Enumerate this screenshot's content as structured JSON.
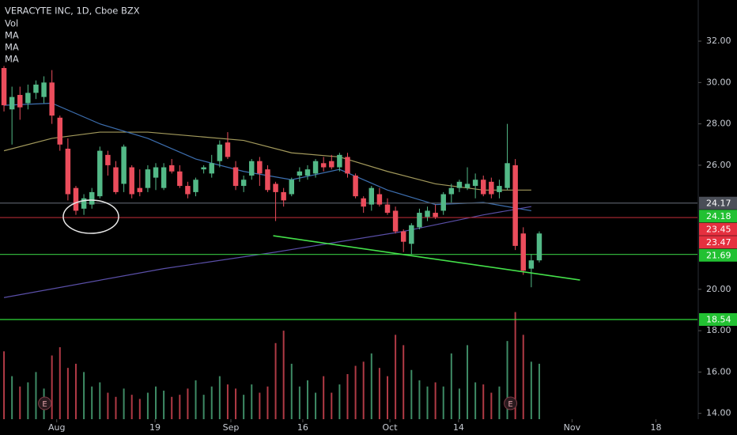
{
  "chart_data": {
    "type": "candlestick",
    "title": "VERACYTE INC, 1D, Cboe BZX",
    "legend": [
      "Vol",
      "MA",
      "MA",
      "MA"
    ],
    "up_color": "#53b987",
    "down_color": "#eb4d5c",
    "categories": [
      null,
      null,
      null,
      null,
      null,
      null,
      null,
      null,
      null,
      null,
      null,
      null,
      null,
      null,
      null,
      null,
      null,
      null,
      null,
      null,
      null,
      null,
      null,
      null,
      null,
      null,
      null,
      null,
      null,
      null,
      null,
      null,
      null,
      null,
      null,
      null,
      null,
      null,
      null,
      null,
      null,
      null,
      null,
      null,
      null,
      null,
      null,
      null,
      null,
      null,
      null,
      null,
      null,
      null,
      null,
      null,
      null,
      null,
      null,
      null,
      null,
      null,
      null,
      null,
      null,
      null,
      null,
      null
    ],
    "open": [
      30.7,
      28.7,
      29.4,
      29.0,
      29.5,
      29.3,
      30.0,
      28.3,
      26.8,
      24.9,
      23.9,
      24.1,
      24.5,
      26.5,
      25.9,
      25.1,
      25.9,
      24.9,
      24.9,
      25.4,
      24.9,
      26.0,
      25.7,
      25.0,
      24.7,
      25.8,
      25.6,
      26.2,
      27.1,
      25.9,
      25.0,
      25.5,
      26.2,
      25.8,
      25.1,
      24.7,
      24.6,
      25.5,
      25.5,
      25.6,
      26.1,
      26.2,
      25.9,
      26.4,
      25.5,
      24.4,
      24.1,
      24.6,
      24.1,
      23.8,
      22.8,
      22.2,
      23.0,
      23.5,
      23.7,
      23.8,
      24.6,
      24.9,
      24.9,
      25.0,
      25.3,
      25.2,
      24.7,
      24.9,
      26.0,
      22.7,
      21.0,
      21.4
    ],
    "high": [
      30.8,
      29.8,
      29.8,
      29.9,
      30.1,
      30.3,
      30.6,
      28.4,
      27.3,
      25.0,
      24.6,
      24.9,
      26.9,
      26.7,
      26.2,
      27.0,
      26.0,
      25.8,
      26.0,
      26.1,
      26.1,
      26.3,
      26.0,
      25.2,
      25.4,
      26.0,
      26.5,
      27.2,
      27.6,
      26.2,
      25.5,
      26.3,
      26.4,
      26.0,
      25.2,
      24.9,
      25.4,
      25.9,
      26.0,
      26.3,
      26.4,
      26.5,
      26.6,
      26.6,
      25.6,
      24.5,
      25.0,
      24.9,
      24.4,
      24.0,
      22.9,
      23.2,
      23.9,
      24.0,
      24.1,
      24.7,
      25.1,
      25.3,
      25.9,
      25.6,
      25.5,
      25.4,
      25.3,
      28.0,
      26.3,
      23.0,
      21.7,
      22.8
    ],
    "low": [
      28.6,
      27.0,
      28.2,
      28.7,
      29.2,
      29.0,
      28.0,
      26.7,
      24.3,
      23.6,
      23.6,
      23.9,
      24.4,
      25.5,
      24.6,
      24.7,
      24.4,
      24.5,
      24.7,
      24.8,
      24.8,
      25.6,
      24.9,
      24.4,
      24.5,
      25.6,
      25.4,
      25.9,
      26.3,
      24.8,
      24.7,
      25.3,
      25.0,
      24.7,
      23.3,
      24.0,
      24.5,
      25.2,
      25.3,
      25.4,
      25.7,
      25.8,
      25.7,
      25.4,
      24.4,
      23.7,
      23.8,
      24.0,
      23.6,
      22.7,
      21.8,
      21.7,
      22.9,
      23.3,
      23.4,
      23.6,
      24.2,
      24.7,
      24.8,
      24.4,
      24.5,
      24.4,
      24.4,
      24.8,
      21.9,
      20.7,
      20.1,
      21.3
    ],
    "close": [
      28.9,
      29.3,
      28.8,
      29.5,
      29.9,
      30.0,
      28.4,
      27.0,
      24.6,
      23.8,
      24.4,
      24.7,
      26.7,
      26.0,
      24.7,
      26.9,
      24.6,
      24.7,
      25.8,
      25.9,
      25.9,
      25.7,
      25.0,
      24.6,
      25.3,
      25.9,
      26.1,
      27.0,
      26.4,
      25.0,
      25.3,
      26.2,
      25.6,
      24.8,
      24.7,
      24.3,
      25.3,
      25.7,
      25.8,
      26.2,
      25.9,
      25.9,
      26.5,
      25.6,
      24.5,
      24.0,
      24.9,
      24.1,
      23.7,
      22.8,
      22.3,
      23.1,
      23.7,
      23.8,
      23.5,
      24.6,
      24.9,
      25.2,
      25.1,
      25.3,
      24.6,
      24.6,
      25.0,
      26.1,
      22.1,
      20.9,
      21.4,
      22.7
    ],
    "volume": [
      17.0,
      15.8,
      15.3,
      15.5,
      16.0,
      15.2,
      16.8,
      17.2,
      16.2,
      16.4,
      16.0,
      15.3,
      15.5,
      15.0,
      14.8,
      15.2,
      14.9,
      14.7,
      15.0,
      15.3,
      15.1,
      14.8,
      14.9,
      15.2,
      15.6,
      14.9,
      15.3,
      15.8,
      15.4,
      15.2,
      14.9,
      15.4,
      15.0,
      15.3,
      17.4,
      18.0,
      16.4,
      15.3,
      15.6,
      15.0,
      15.8,
      15.0,
      15.4,
      15.9,
      16.3,
      16.5,
      16.9,
      16.2,
      15.8,
      17.8,
      17.3,
      16.1,
      15.6,
      15.3,
      15.5,
      15.3,
      16.9,
      15.2,
      17.3,
      15.5,
      15.4,
      15.0,
      15.3,
      17.5,
      18.9,
      17.8,
      16.5,
      16.4
    ],
    "ma": [
      {
        "color": "#a39a5c",
        "x": [
          0,
          6,
          12,
          18,
          24,
          30,
          36,
          42,
          48,
          54,
          60,
          66
        ],
        "values": [
          26.7,
          27.3,
          27.6,
          27.6,
          27.4,
          27.2,
          26.6,
          26.4,
          25.7,
          25.1,
          24.8,
          24.8
        ]
      },
      {
        "color": "#3d6fb0",
        "x": [
          0,
          6,
          12,
          18,
          24,
          30,
          36,
          42,
          48,
          54,
          60,
          66
        ],
        "values": [
          28.9,
          29.0,
          28.0,
          27.3,
          26.3,
          25.7,
          25.3,
          25.8,
          24.8,
          24.1,
          24.2,
          23.8
        ]
      },
      {
        "color": "#5a4fa8",
        "x": [
          0,
          20,
          34,
          50,
          60,
          66
        ],
        "values": [
          19.6,
          21.0,
          21.8,
          22.8,
          23.6,
          24.0
        ]
      }
    ],
    "trendline": {
      "color": "#44e04a",
      "x": [
        33.7,
        72.1
      ],
      "values": [
        22.59,
        20.45
      ]
    },
    "hlines": [
      {
        "value": 24.17,
        "color": "#555a63"
      },
      {
        "value": 23.47,
        "color": "#b02a35"
      },
      {
        "value": 21.69,
        "color": "#2fae3a"
      },
      {
        "value": 18.54,
        "color": "#2fd93a"
      }
    ],
    "price_labels": [
      {
        "value": 24.17,
        "color": "#4a4e57"
      },
      {
        "value": 24.18,
        "color": "#22c132"
      },
      {
        "value": 23.45,
        "color": "#e5303f"
      },
      {
        "value": 23.47,
        "color": "#e5303f"
      },
      {
        "value": 21.69,
        "color": "#22c132"
      },
      {
        "value": 18.54,
        "color": "#22c132"
      }
    ],
    "events": [
      {
        "x": 5.1,
        "label": "E"
      },
      {
        "x": 63.4,
        "label": "E"
      }
    ],
    "xlim": [
      -0.5,
      86.8
    ],
    "ylim": [
      13.72,
      33.99
    ],
    "xticks": [
      {
        "value": 6.6,
        "label": "Aug"
      },
      {
        "value": 18.9,
        "label": "19"
      },
      {
        "value": 28.4,
        "label": "Sep"
      },
      {
        "value": 37.4,
        "label": "16"
      },
      {
        "value": 48.3,
        "label": "Oct"
      },
      {
        "value": 56.9,
        "label": "14"
      },
      {
        "value": 71.1,
        "label": "Nov"
      },
      {
        "value": 81.6,
        "label": "18"
      }
    ],
    "yticks": [
      {
        "value": 14,
        "label": "14.00"
      },
      {
        "value": 16,
        "label": "16.00"
      },
      {
        "value": 18,
        "label": "18.00"
      },
      {
        "value": 20,
        "label": "20.00"
      },
      {
        "value": 26,
        "label": "26.00"
      },
      {
        "value": 28,
        "label": "28.00"
      },
      {
        "value": 30,
        "label": "30.00"
      },
      {
        "value": 32,
        "label": "32.00"
      }
    ]
  }
}
